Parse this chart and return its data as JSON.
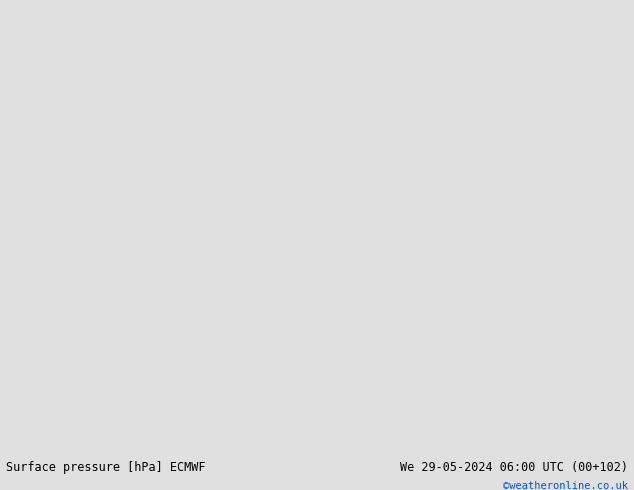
{
  "title_left": "Surface pressure [hPa] ECMWF",
  "title_right": "We 29-05-2024 06:00 UTC (00+102)",
  "copyright": "©weatheronline.co.uk",
  "land_color": "#c8e8b0",
  "ocean_color": "#d0d0d8",
  "coast_color": "#888888",
  "bar_color": "#e0e0e0",
  "black": "#000000",
  "blue": "#0044cc",
  "red": "#cc0000",
  "cyan_blue": "#0077cc",
  "fig_width": 6.34,
  "fig_height": 4.9,
  "map_extent": [
    -30,
    42,
    32,
    72
  ],
  "bottom_text_left": "Surface pressure [hPa] ECMWF",
  "bottom_text_right": "We 29-05-2024 06:00 UTC (00+102)",
  "copyright_text": "©weatheronline.co.uk"
}
